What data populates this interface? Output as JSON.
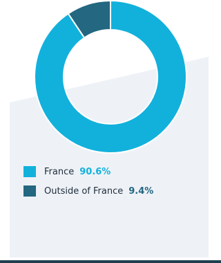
{
  "chart_data": {
    "type": "pie",
    "donut": true,
    "categories": [
      "France",
      "Outside of France"
    ],
    "values": [
      90.6,
      9.4
    ],
    "value_labels": [
      "90.6%",
      "9.4%"
    ],
    "colors": [
      "#12b1dc",
      "#236780"
    ]
  }
}
